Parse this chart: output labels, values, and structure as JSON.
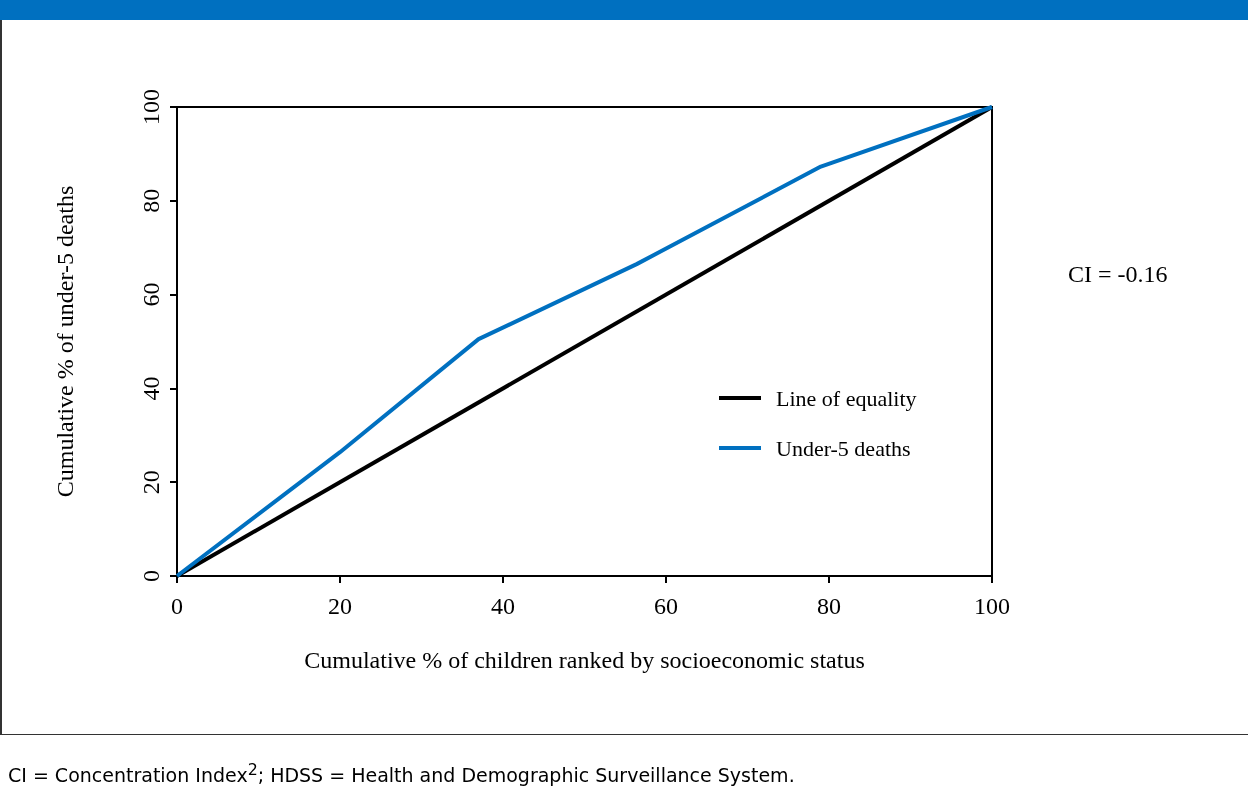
{
  "chart_data": {
    "type": "line",
    "xlabel": "Cumulative % of children ranked by socioeconomic status",
    "ylabel": "Cumulative % of under-5 deaths",
    "series": [
      {
        "name": "Line of equality",
        "color": "#000000",
        "x": [
          0,
          100
        ],
        "values": [
          0,
          100
        ]
      },
      {
        "name": "Under-5 deaths",
        "color": "#0070c0",
        "x": [
          0,
          20,
          37,
          56.4,
          79,
          100
        ],
        "values": [
          0,
          26.4,
          50.5,
          66.5,
          87.3,
          100
        ]
      }
    ],
    "xlim": [
      0,
      100
    ],
    "ylim": [
      0,
      100
    ],
    "xticks": [
      0,
      20,
      40,
      60,
      80,
      100
    ],
    "yticks": [
      0,
      20,
      40,
      60,
      80,
      100
    ],
    "grid": false,
    "legend": "right",
    "marker": "none",
    "line_style": "solid",
    "annotations": [
      "CI = -0.16",
      "CI = Concentration Index$^{2}$; HDSS = Health and Demographic Surveillance System."
    ]
  }
}
